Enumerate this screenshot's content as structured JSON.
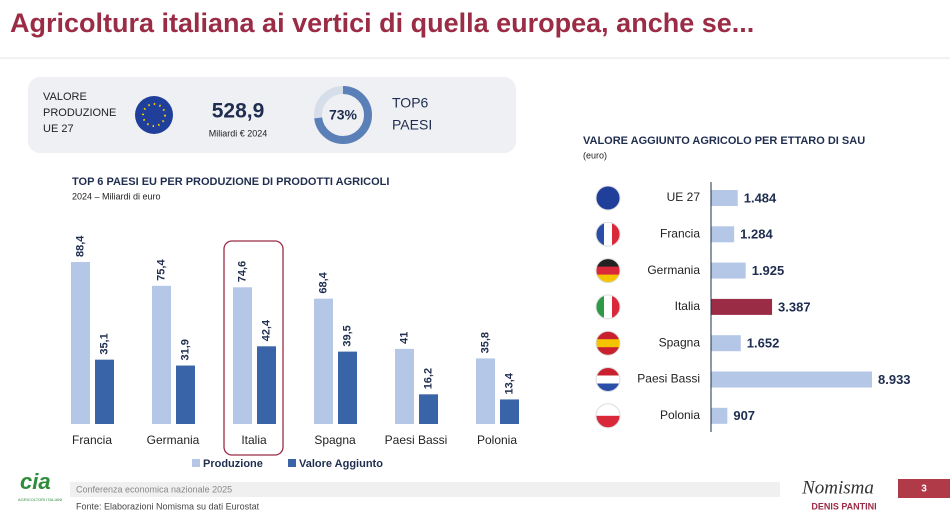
{
  "slide": {
    "title": "Agricoltura italiana ai vertici di quella europea, anche se...",
    "kpi": {
      "label_lines": [
        "VALORE",
        "PRODUZIONE",
        "UE 27"
      ],
      "amount": "528,9",
      "amount_unit": "Miliardi € 2024",
      "share": {
        "value": 73,
        "label": "73%"
      },
      "share_label_lines": [
        "TOP6",
        "PAESI"
      ]
    },
    "footer": {
      "logo": "cia",
      "logo_sub": "AGRICOLTORI ITALIANI",
      "event": "Conferenza economica nazionale 2025",
      "source": "Fonte: Elaborazioni Nomisma su dati Eurostat",
      "brand": "Nomisma",
      "author": "DENIS PANTINI",
      "page": "3"
    }
  },
  "chart_data": [
    {
      "type": "bar",
      "title": "TOP 6 PAESI EU PER PRODUZIONE DI PRODOTTI AGRICOLI",
      "subtitle": "2024 – Miliardi di euro",
      "categories": [
        "Francia",
        "Germania",
        "Italia",
        "Spagna",
        "Paesi Bassi",
        "Polonia"
      ],
      "highlight": "Italia",
      "series": [
        {
          "name": "Produzione",
          "color": "#b4c7e7",
          "values": [
            88.4,
            75.4,
            74.6,
            68.4,
            41,
            35.8
          ],
          "value_labels": [
            "88,4",
            "75,4",
            "74,6",
            "68,4",
            "41",
            "35,8"
          ]
        },
        {
          "name": "Valore Aggiunto",
          "color": "#3a64a8",
          "values": [
            35.1,
            31.9,
            42.4,
            39.5,
            16.2,
            13.4
          ],
          "value_labels": [
            "35,1",
            "31,9",
            "42,4",
            "39,5",
            "16,2",
            "13,4"
          ]
        }
      ]
    },
    {
      "type": "barh",
      "title": "VALORE AGGIUNTO AGRICOLO PER ETTARO DI SAU",
      "subtitle": "(euro)",
      "categories": [
        "UE 27",
        "Francia",
        "Germania",
        "Italia",
        "Spagna",
        "Paesi Bassi",
        "Polonia"
      ],
      "values": [
        1484,
        1284,
        1925,
        3387,
        1652,
        8933,
        907
      ],
      "value_labels": [
        "1.484",
        "1.284",
        "1.925",
        "3.387",
        "1.652",
        "8.933",
        "907"
      ],
      "colors": [
        "#b4c7e7",
        "#b4c7e7",
        "#b4c7e7",
        "#9b2c45",
        "#b4c7e7",
        "#b4c7e7",
        "#b4c7e7"
      ]
    }
  ]
}
